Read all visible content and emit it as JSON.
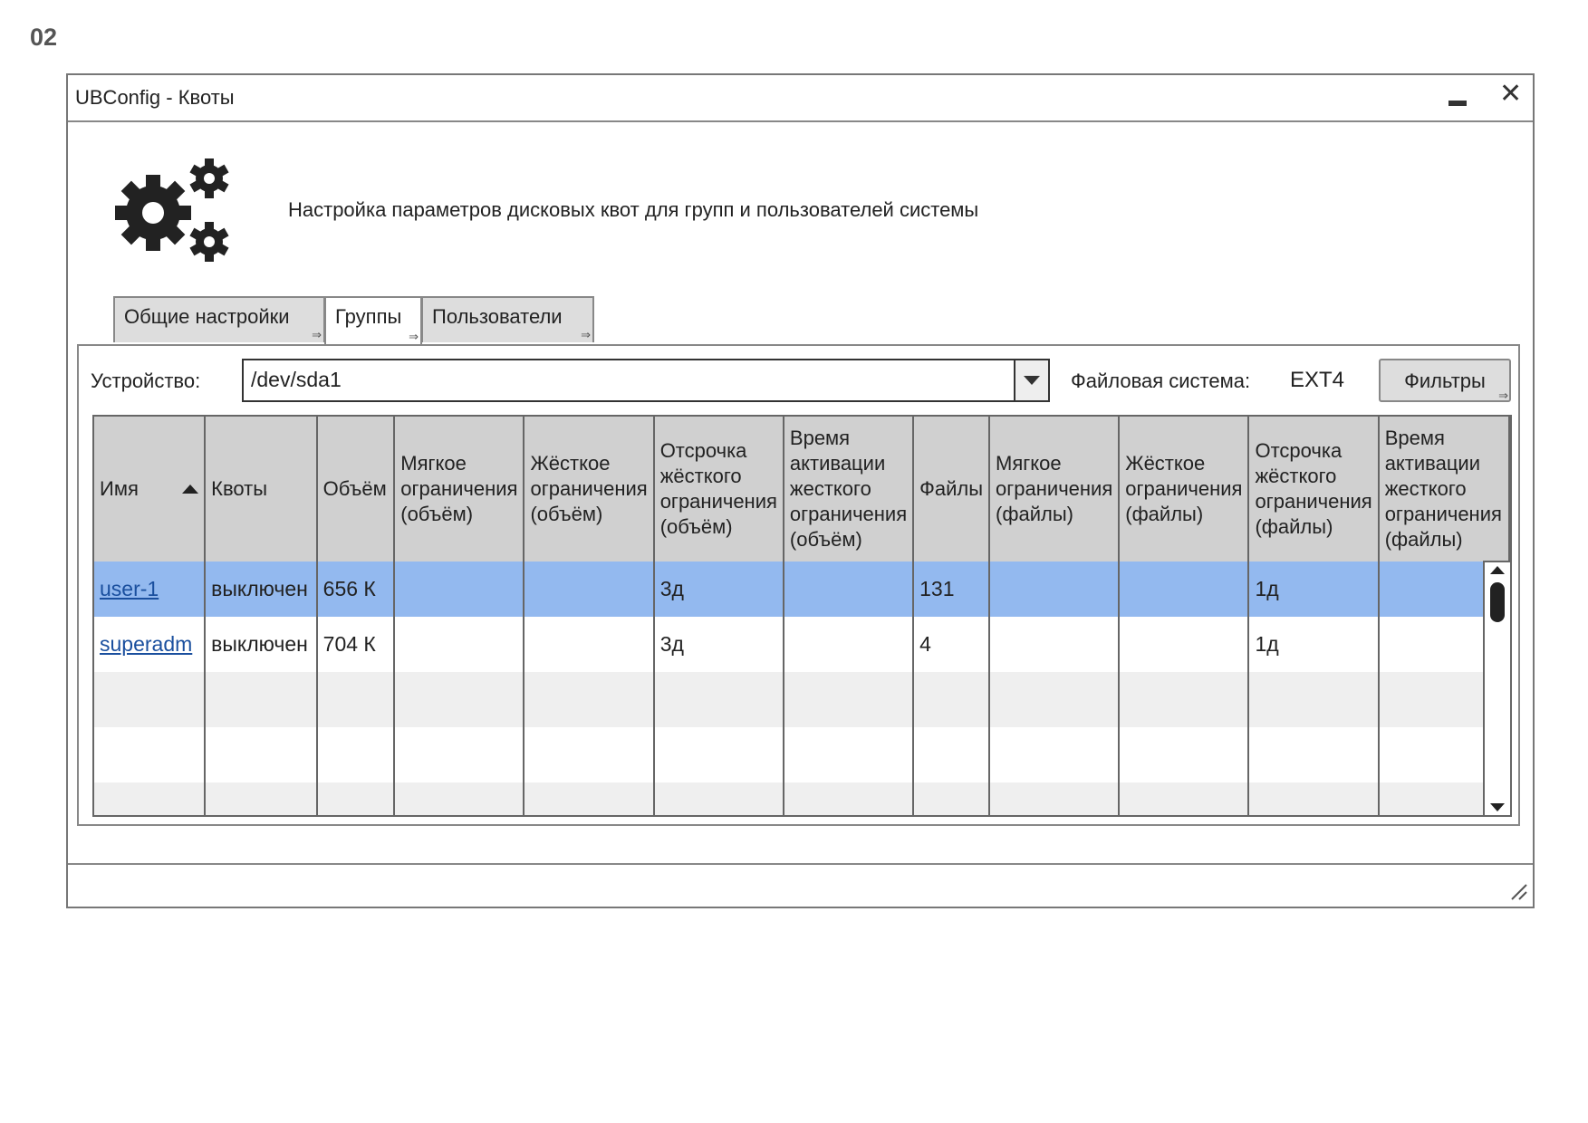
{
  "page_number": "02",
  "window": {
    "title": "UBConfig - Квоты",
    "description": "Настройка параметров дисковых квот для групп и пользователей системы"
  },
  "tabs": [
    {
      "label": "Общие настройки",
      "active": false
    },
    {
      "label": "Группы",
      "active": true
    },
    {
      "label": "Пользователи",
      "active": false
    }
  ],
  "toolbar": {
    "device_label": "Устройство:",
    "device_value": "/dev/sda1",
    "fs_label": "Файловая система:",
    "fs_value": "EXT4",
    "filters_label": "Фильтры"
  },
  "table": {
    "sort_column": "Имя",
    "sort_direction": "ascending",
    "columns": [
      [
        "Имя"
      ],
      [
        "Квоты"
      ],
      [
        "Объём"
      ],
      [
        "Мягкое",
        "ограничения",
        "(объём)"
      ],
      [
        "Жёсткое",
        "ограничения",
        "(объём)"
      ],
      [
        "Отсрочка",
        "жёсткого",
        "ограничения",
        "(объём)"
      ],
      [
        "Время",
        "активации",
        "жесткого",
        "ограничения",
        "(объём)"
      ],
      [
        "Файлы"
      ],
      [
        "Мягкое",
        "ограничения",
        "(файлы)"
      ],
      [
        "Жёсткое",
        "ограничения",
        "(файлы)"
      ],
      [
        "Отсрочка",
        "жёсткого",
        "ограничения",
        "(файлы)"
      ],
      [
        "Время",
        "активации",
        "жесткого",
        "ограничения",
        "(файлы)"
      ]
    ],
    "rows": [
      {
        "selected": true,
        "cells": [
          "user-1",
          "выключен",
          "656 К",
          "",
          "",
          "3д",
          "",
          "131",
          "",
          "",
          "1д",
          ""
        ]
      },
      {
        "selected": false,
        "cells": [
          "superadm",
          "выключен",
          "704 К",
          "",
          "",
          "3д",
          "",
          "4",
          "",
          "",
          "1д",
          ""
        ]
      }
    ],
    "empty_rows": 3
  },
  "colors": {
    "selected_row": "#93b9ef",
    "header_bg": "#d0d0d0",
    "alt_row": "#efefef",
    "link": "#1a4f9e"
  },
  "icons": {
    "app": "gears-icon",
    "minimize": "minimize-icon",
    "close": "close-icon",
    "dropdown": "chevron-down-icon",
    "resize": "resize-grip-icon"
  }
}
